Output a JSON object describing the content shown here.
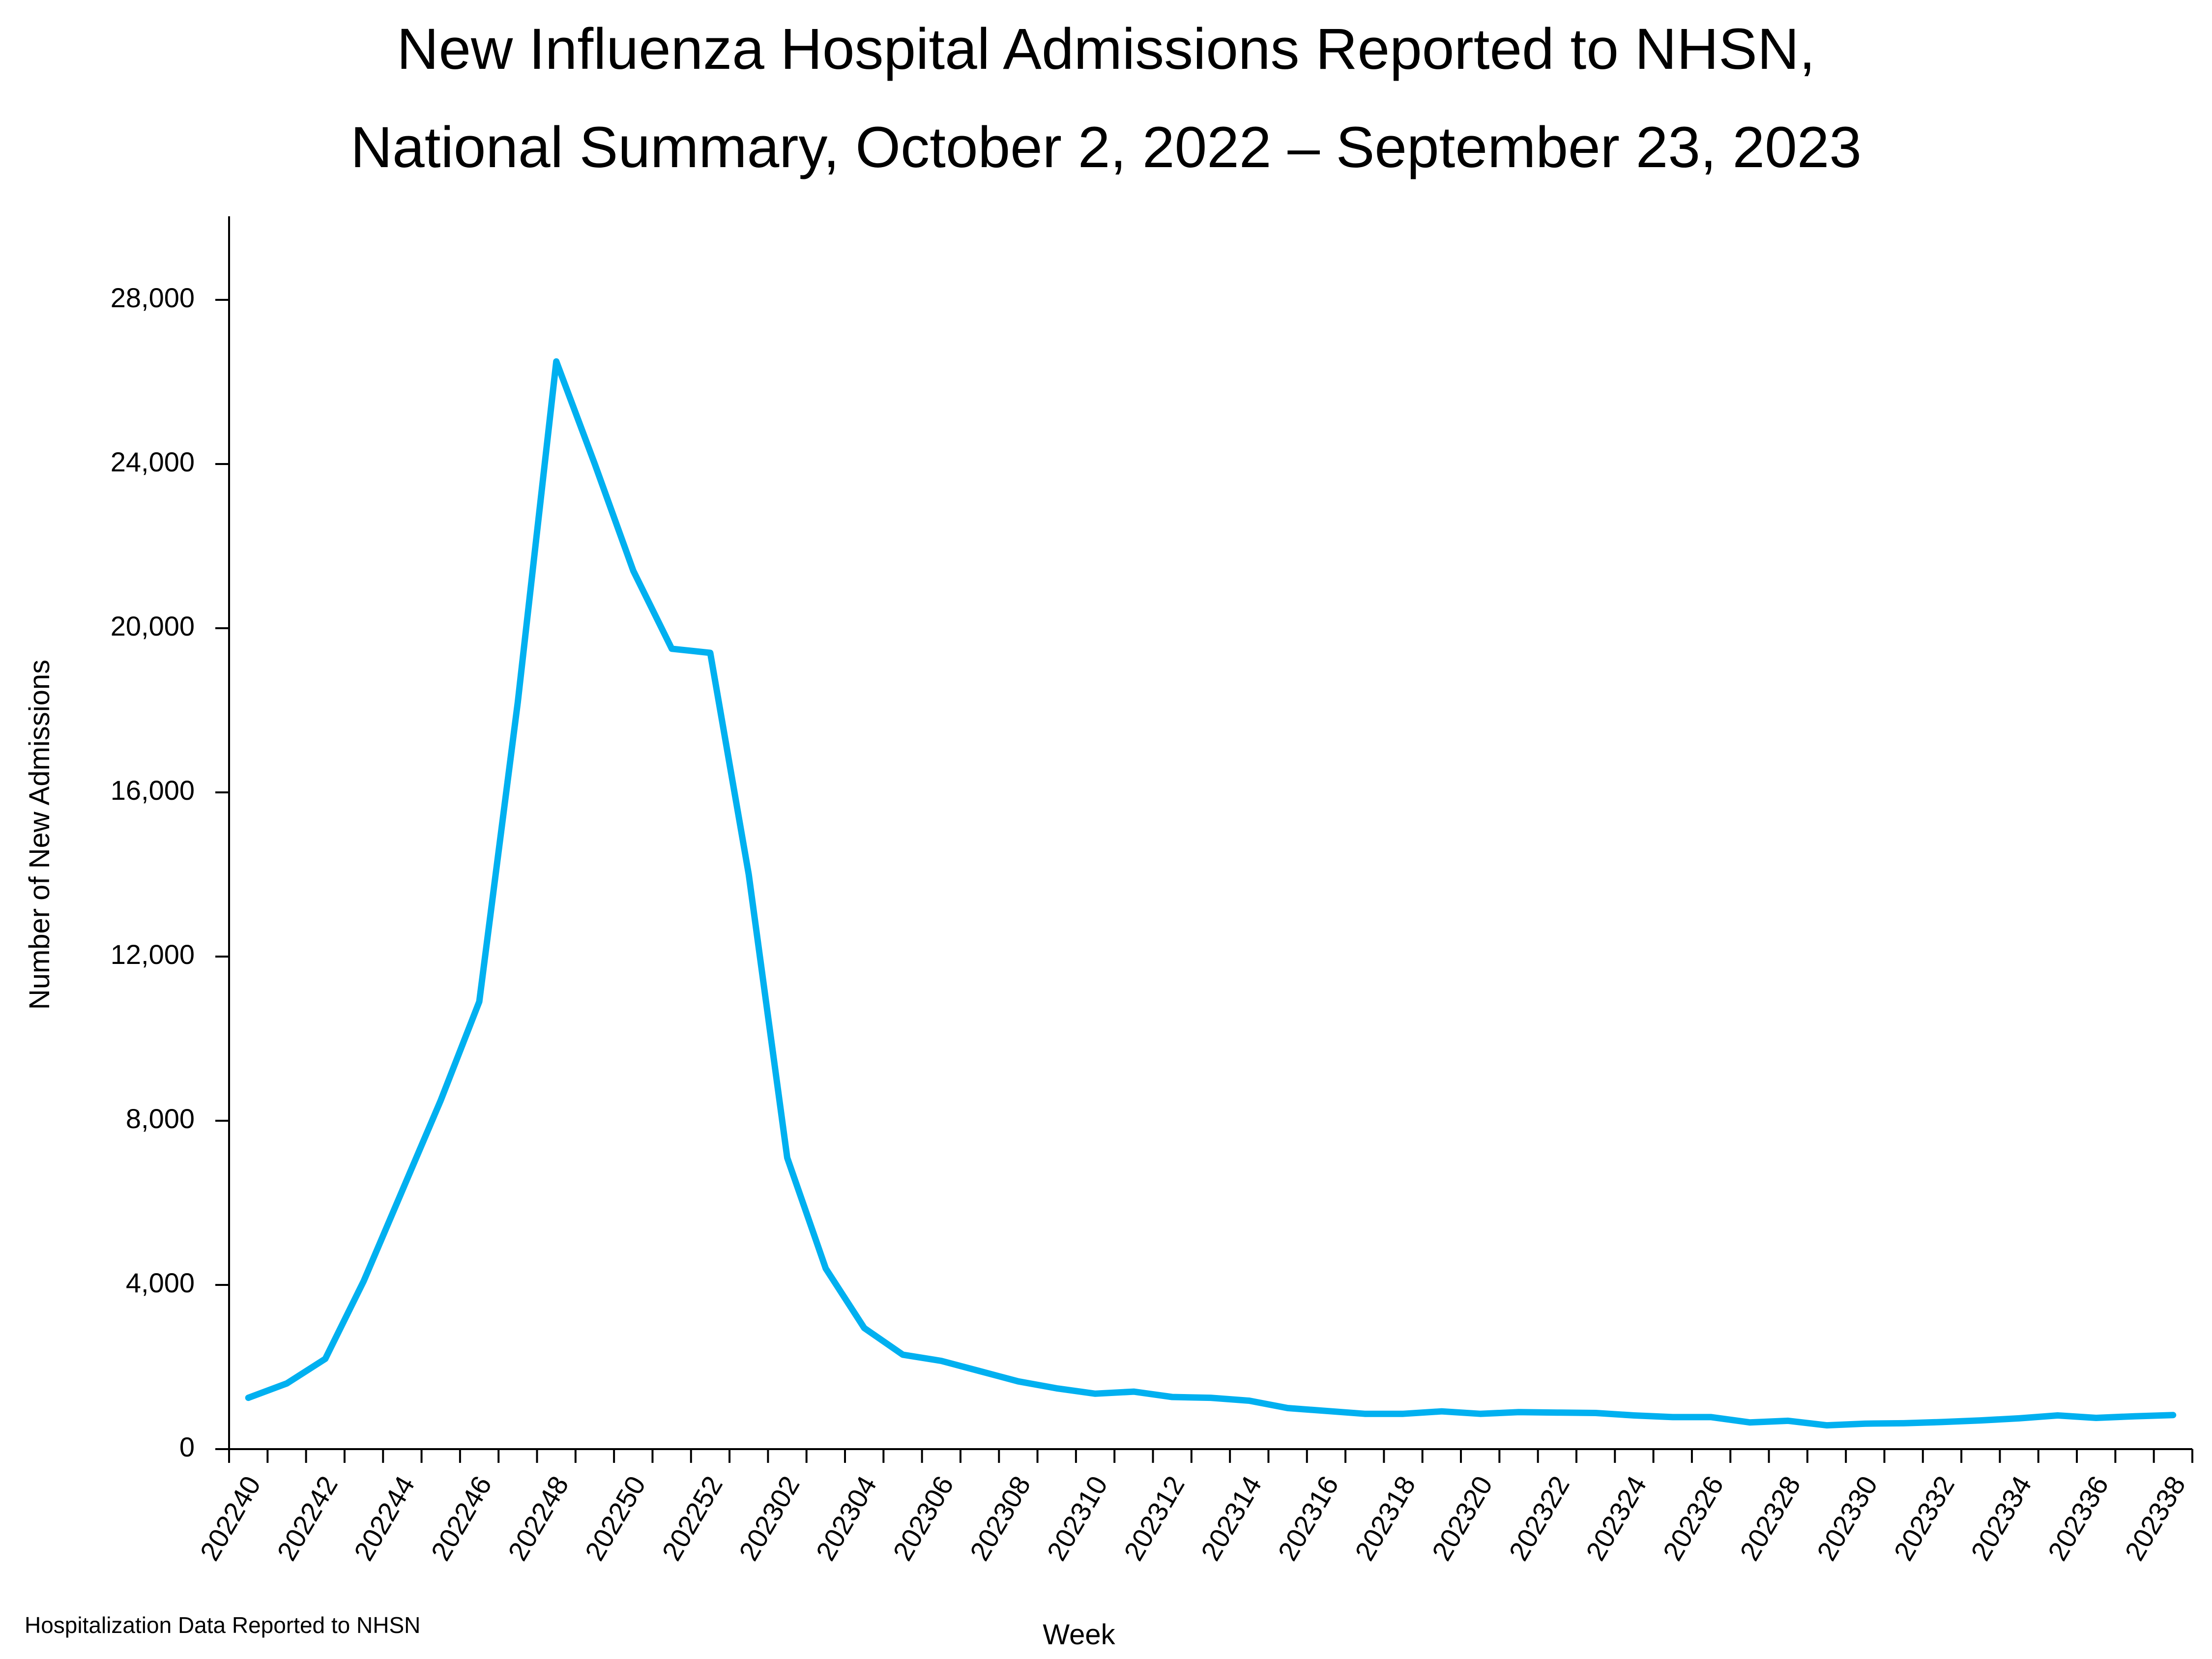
{
  "chart_data": {
    "type": "line",
    "title_lines": [
      "New Influenza Hospital Admissions Reported to NHSN,",
      "National Summary, October 2, 2022 – September 23, 2023"
    ],
    "xlabel": "Week",
    "ylabel": "Number of New Admissions",
    "footnote": "Hospitalization Data Reported to NHSN",
    "ylim": [
      0,
      30000
    ],
    "yticks": [
      0,
      4000,
      8000,
      12000,
      16000,
      20000,
      24000,
      28000
    ],
    "ytick_labels": [
      "0",
      "4,000",
      "8,000",
      "12,000",
      "16,000",
      "20,000",
      "24,000",
      "28,000"
    ],
    "xtick_labels": [
      "202240",
      "202242",
      "202244",
      "202246",
      "202248",
      "202250",
      "202252",
      "202302",
      "202304",
      "202306",
      "202308",
      "202310",
      "202312",
      "202314",
      "202316",
      "202318",
      "202320",
      "202322",
      "202324",
      "202326",
      "202328",
      "202330",
      "202332",
      "202334",
      "202336",
      "202338"
    ],
    "line_color": "#00B0F0",
    "series": [
      {
        "name": "New Admissions",
        "x": [
          "202240",
          "202241",
          "202242",
          "202243",
          "202244",
          "202245",
          "202246",
          "202247",
          "202248",
          "202249",
          "202250",
          "202251",
          "202252",
          "202301",
          "202302",
          "202303",
          "202304",
          "202305",
          "202306",
          "202307",
          "202308",
          "202309",
          "202310",
          "202311",
          "202312",
          "202313",
          "202314",
          "202315",
          "202316",
          "202317",
          "202318",
          "202319",
          "202320",
          "202321",
          "202322",
          "202323",
          "202324",
          "202325",
          "202326",
          "202327",
          "202328",
          "202329",
          "202330",
          "202331",
          "202332",
          "202333",
          "202334",
          "202335",
          "202336",
          "202337",
          "202338"
        ],
        "values": [
          1250,
          1600,
          2200,
          4100,
          6300,
          8500,
          10900,
          18200,
          26500,
          24000,
          21400,
          19500,
          19400,
          14000,
          7100,
          4400,
          2950,
          2300,
          2150,
          1900,
          1650,
          1480,
          1350,
          1400,
          1270,
          1250,
          1180,
          1000,
          930,
          860,
          860,
          920,
          860,
          900,
          890,
          880,
          820,
          780,
          780,
          650,
          690,
          580,
          620,
          630,
          660,
          700,
          750,
          820,
          760,
          800,
          830
        ]
      }
    ]
  }
}
